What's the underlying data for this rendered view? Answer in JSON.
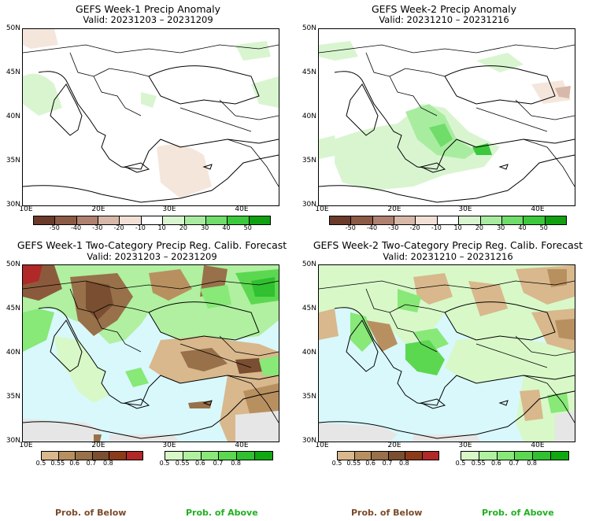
{
  "panels": [
    {
      "title": "GEFS Week-1 Precip Anomaly",
      "valid": "Valid: 20231203 – 20231209"
    },
    {
      "title": "GEFS Week-2 Precip Anomaly",
      "valid": "Valid: 20231210 – 20231216"
    },
    {
      "title": "GEFS Week-1 Two-Category Precip Reg. Calib. Forecast",
      "valid": "Valid: 20231203 – 20231209"
    },
    {
      "title": "GEFS Week-2 Two-Category Precip Reg. Calib. Forecast",
      "valid": "Valid: 20231210 – 20231216"
    }
  ],
  "lat_labels": [
    "50N",
    "45N",
    "40N",
    "35N",
    "30N"
  ],
  "lon_labels": [
    "10E",
    "20E",
    "30E",
    "40E"
  ],
  "anomaly_colorbar": {
    "ticks": [
      "-50",
      "-40",
      "-30",
      "-20",
      "-10",
      "10",
      "20",
      "30",
      "40",
      "50"
    ],
    "colors": [
      "#6b3a2a",
      "#8c5a45",
      "#b08070",
      "#d8b8a8",
      "#f2e0d6",
      "#ffffff",
      "#d8f5d0",
      "#a8eca0",
      "#70dc6a",
      "#3cc83c",
      "#10a010"
    ]
  },
  "below_colorbar": {
    "ticks": [
      "0.5",
      "0.55",
      "0.6",
      "0.7",
      "0.8"
    ],
    "colors": [
      "#d8b88c",
      "#b89060",
      "#98704a",
      "#7a4e30",
      "#8b3a1a",
      "#b02828"
    ]
  },
  "above_colorbar": {
    "ticks": [
      "0.5",
      "0.55",
      "0.6",
      "0.7",
      "0.8"
    ],
    "colors": [
      "#d8f8c8",
      "#b0f0a0",
      "#88e878",
      "#5cd850",
      "#30c030",
      "#10a810"
    ]
  },
  "prob_below_label": "Prob. of Below",
  "prob_above_label": "Prob. of Above",
  "colors": {
    "sea": "#d8f8fc",
    "land_white": "#ffffff",
    "prob_below_text": "#7a4a2a",
    "prob_above_text": "#20b020",
    "no_skill": "#e6e6e6"
  }
}
